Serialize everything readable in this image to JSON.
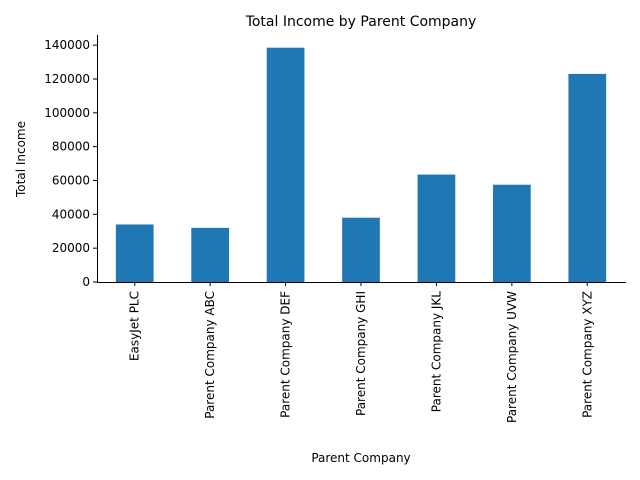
{
  "chart_data": {
    "type": "bar",
    "title": "Total Income by Parent Company",
    "xlabel": "Parent Company",
    "ylabel": "Total Income",
    "categories": [
      "EasyJet PLC",
      "Parent Company ABC",
      "Parent Company DEF",
      "Parent Company GHI",
      "Parent Company JKL",
      "Parent Company UVW",
      "Parent Company XYZ"
    ],
    "values": [
      34000,
      32000,
      138500,
      38000,
      63500,
      57500,
      123000
    ],
    "ylim": [
      0,
      146000
    ],
    "yticks": [
      0,
      20000,
      40000,
      60000,
      80000,
      100000,
      120000,
      140000
    ],
    "bar_color": "#1f77b4",
    "grid": false,
    "legend": "none"
  }
}
